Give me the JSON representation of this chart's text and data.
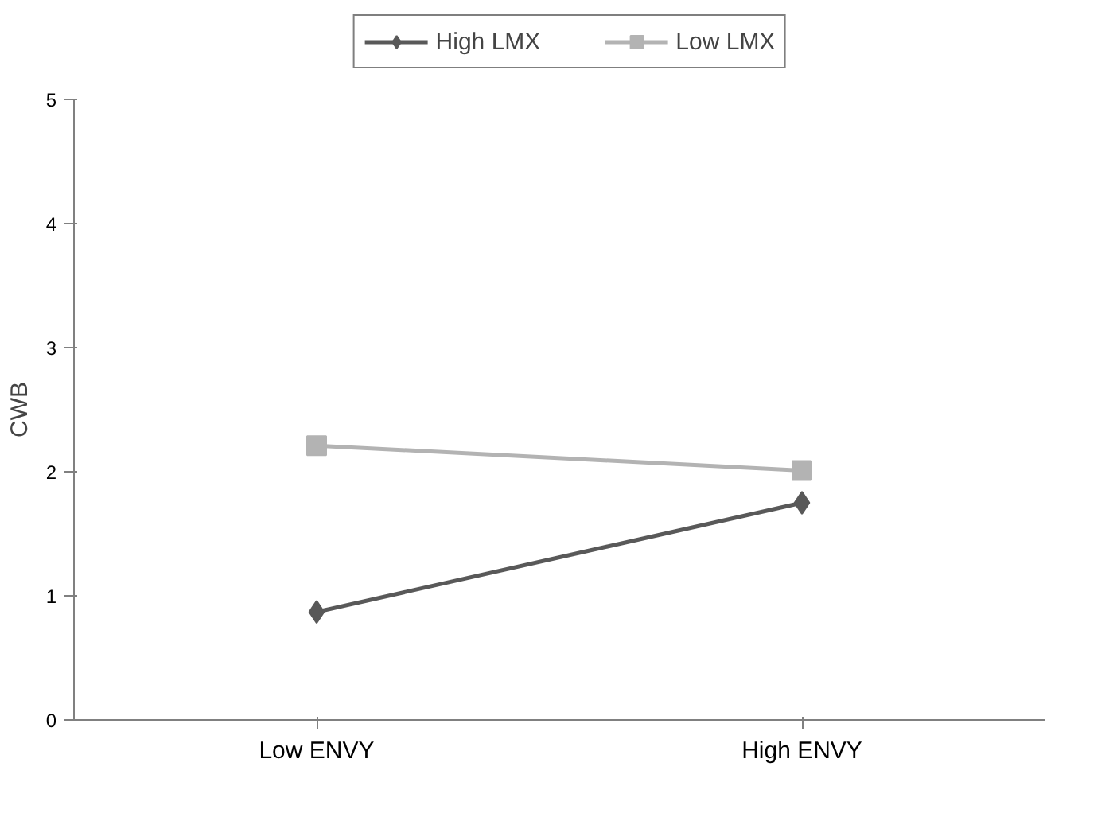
{
  "chart_data": {
    "type": "line",
    "ylabel": "CWB",
    "categories": [
      "Low ENVY",
      "High ENVY"
    ],
    "series": [
      {
        "name": "High LMX",
        "color": "#595959",
        "marker": "diamond",
        "values": [
          0.87,
          1.75
        ]
      },
      {
        "name": "Low LMX",
        "color": "#b3b3b3",
        "marker": "square",
        "values": [
          2.21,
          2.01
        ]
      }
    ],
    "ylim": [
      0,
      5
    ],
    "yticks": [
      0,
      1,
      2,
      3,
      4,
      5
    ],
    "grid": false,
    "legend": "top",
    "line_style": "solid"
  }
}
